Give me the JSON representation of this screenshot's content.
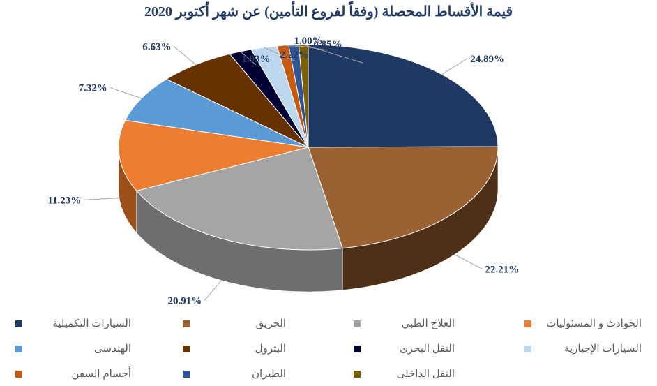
{
  "chart_data": {
    "type": "pie",
    "title": "قيمة الأقساط المحصلة (وفقاً لفروع التأمين) عن شهر أكتوبر 2020",
    "series": [
      {
        "name": "السيارات التكميلية",
        "value": 24.89,
        "label": "24.89%",
        "color": "#1F3864",
        "side": "#15284A"
      },
      {
        "name": "الحريق",
        "value": 22.21,
        "label": "22.21%",
        "color": "#9A6233",
        "side": "#4E3018"
      },
      {
        "name": "العلاج الطبي",
        "value": 20.91,
        "label": "20.91%",
        "color": "#A5A5A5",
        "side": "#6E6E6E"
      },
      {
        "name": "الحوادث و المسئوليات",
        "value": 11.23,
        "label": "11.23%",
        "color": "#ED7D31",
        "side": "#9C4F19"
      },
      {
        "name": "الهندسى",
        "value": 7.32,
        "label": "7.32%",
        "color": "#5B9BD5",
        "side": "#2E5E8A"
      },
      {
        "name": "البترول",
        "value": 6.63,
        "label": "6.63%",
        "color": "#663300",
        "side": "#3A1C00"
      },
      {
        "name": "النقل البحرى",
        "value": 1.93,
        "label": "1.93%",
        "color": "#000033",
        "side": "#000018"
      },
      {
        "name": "السيارات الإجبارية",
        "value": 2.22,
        "label": "2.22%",
        "color": "#BDD7EE",
        "side": "#8AA9C5"
      },
      {
        "name": "أجسام السفن",
        "value": 1.0,
        "label": "1.00%",
        "color": "#C55A11",
        "side": "#7A360A"
      },
      {
        "name": "الطيران",
        "value": 0.85,
        "label": "0.85%",
        "color": "#2F5597",
        "side": "#1B3360"
      },
      {
        "name": "النقل الداخلى",
        "value": 0.8,
        "label": "0.80%",
        "color": "#7F6000",
        "side": "#4A3800"
      }
    ],
    "start_angle_deg": 0,
    "direction": "clockwise",
    "legend_position": "bottom",
    "style": "3d"
  }
}
